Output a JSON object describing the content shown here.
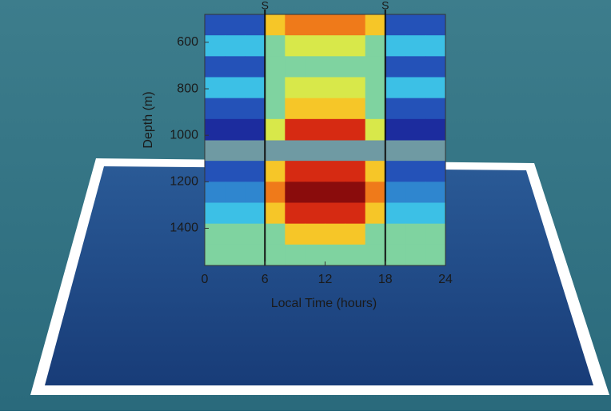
{
  "chart_data": {
    "type": "heatmap",
    "x_axis_label": "Local Time (hours)",
    "y_axis_label": "Depth (m)",
    "xlim": [
      0,
      24
    ],
    "xticks": [
      0,
      6,
      12,
      18,
      24
    ],
    "ylim": [
      480,
      1560
    ],
    "yticks": [
      600,
      800,
      1000,
      1200,
      1400
    ],
    "y_inverted": true,
    "x_bins": [
      0,
      2,
      4,
      6,
      8,
      10,
      12,
      14,
      16,
      18,
      20,
      22,
      24
    ],
    "y_bins": [
      480,
      570,
      660,
      750,
      840,
      930,
      1020,
      1110,
      1200,
      1290,
      1380,
      1470,
      1560
    ],
    "clim": [
      0,
      10
    ],
    "colormap": [
      "#10106a",
      "#1c2c9e",
      "#2452b8",
      "#2f86cf",
      "#3cc0e6",
      "#7fd3a0",
      "#d8e84a",
      "#f6c628",
      "#ef7a1a",
      "#d62a12",
      "#8a0c0c"
    ],
    "z": [
      [
        2,
        2,
        2,
        7,
        8,
        8,
        8,
        8,
        7,
        2,
        2,
        2
      ],
      [
        4,
        4,
        4,
        5,
        6,
        6,
        6,
        6,
        5,
        4,
        4,
        4
      ],
      [
        2,
        2,
        2,
        5,
        5,
        5,
        5,
        5,
        5,
        2,
        2,
        2
      ],
      [
        4,
        4,
        4,
        5,
        6,
        6,
        6,
        6,
        5,
        4,
        4,
        4
      ],
      [
        2,
        2,
        2,
        5,
        7,
        7,
        7,
        7,
        5,
        2,
        2,
        2
      ],
      [
        1,
        1,
        1,
        6,
        9,
        9,
        9,
        9,
        6,
        1,
        1,
        1
      ],
      [
        null,
        null,
        null,
        null,
        null,
        null,
        null,
        null,
        null,
        null,
        null,
        null
      ],
      [
        2,
        2,
        2,
        7,
        9,
        9,
        9,
        9,
        7,
        2,
        2,
        2
      ],
      [
        3,
        3,
        3,
        8,
        10,
        10,
        10,
        10,
        8,
        3,
        3,
        3
      ],
      [
        4,
        4,
        4,
        7,
        9,
        9,
        9,
        9,
        7,
        4,
        4,
        4
      ],
      [
        5,
        5,
        5,
        5,
        7,
        7,
        7,
        7,
        5,
        5,
        5,
        5
      ],
      [
        5,
        5,
        5,
        5,
        5,
        5,
        5,
        5,
        5,
        5,
        5,
        5
      ]
    ],
    "annotations": [
      {
        "x": 6,
        "label": "S"
      },
      {
        "x": 18,
        "label": "S"
      }
    ]
  }
}
